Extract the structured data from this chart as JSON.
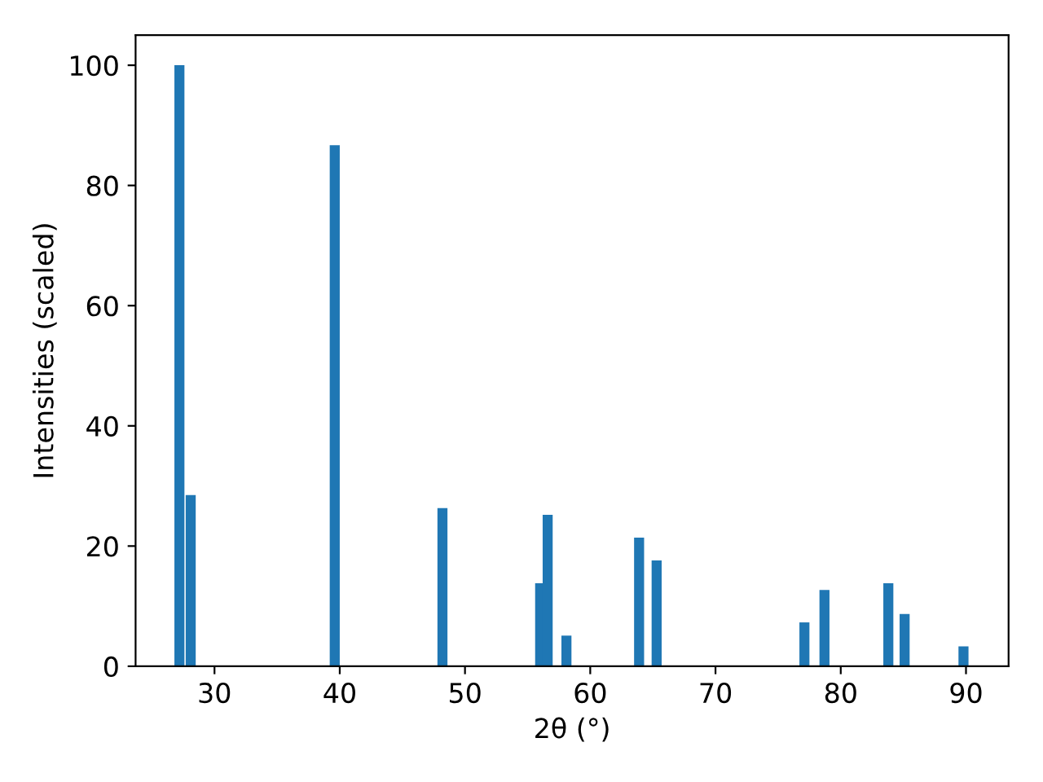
{
  "chart_data": {
    "type": "bar",
    "xlabel": "2θ (°)",
    "ylabel": "Intensities (scaled)",
    "x": [
      27.2,
      28.1,
      39.6,
      48.2,
      56.0,
      56.6,
      58.1,
      63.9,
      65.3,
      77.1,
      78.7,
      83.8,
      85.1,
      89.8
    ],
    "values": [
      100,
      28.5,
      86.7,
      26.3,
      13.8,
      25.2,
      5.1,
      21.4,
      17.6,
      7.3,
      12.7,
      13.8,
      8.7,
      3.3
    ],
    "color": "#1f77b4",
    "xlim": [
      23.7,
      93.4
    ],
    "ylim": [
      0,
      105
    ],
    "xticks": [
      30,
      40,
      50,
      60,
      70,
      80,
      90
    ],
    "yticks": [
      0,
      20,
      40,
      60,
      80,
      100
    ],
    "grid": false
  }
}
